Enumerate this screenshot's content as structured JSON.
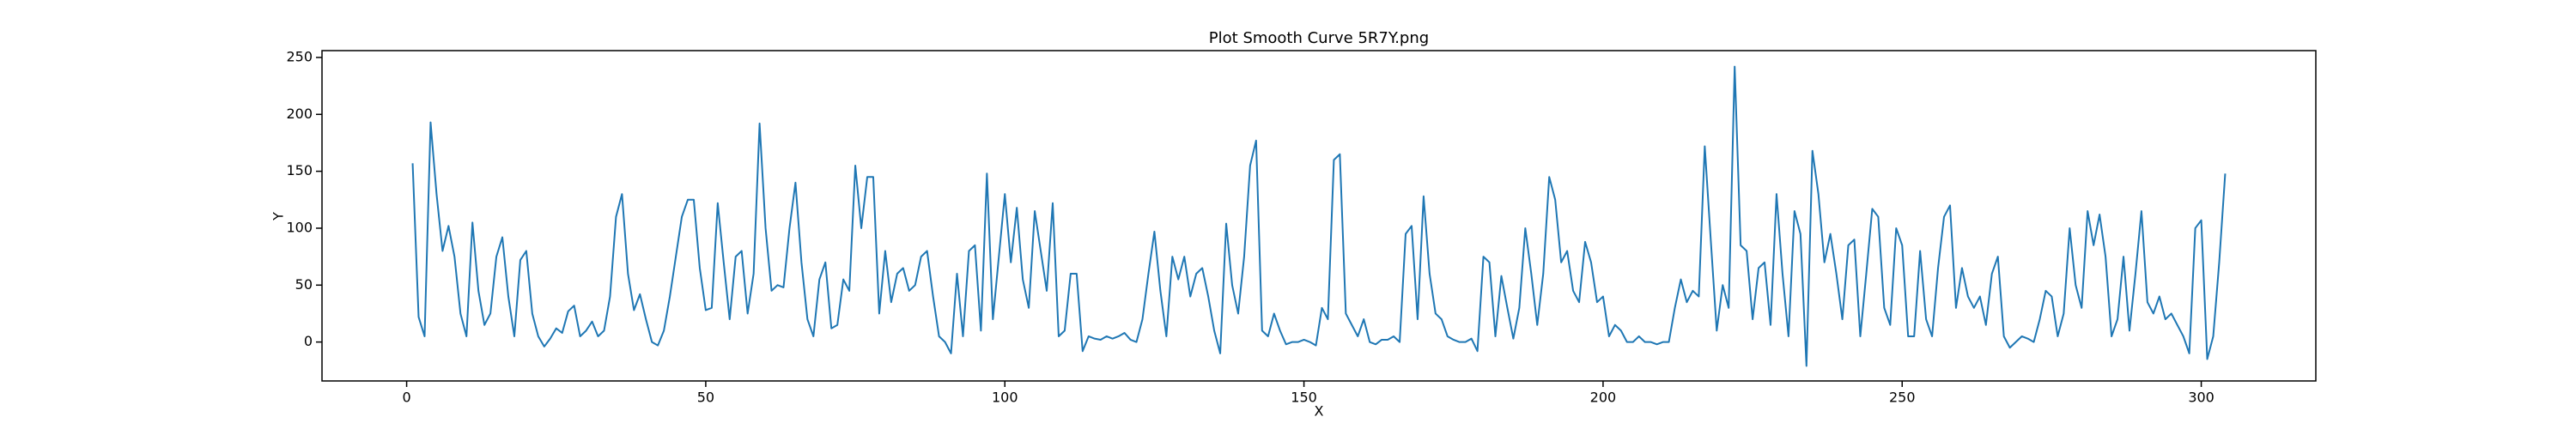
{
  "chart_data": {
    "type": "line",
    "title": "Plot Smooth Curve 5R7Y.png",
    "xlabel": "X",
    "ylabel": "Y",
    "color": "#1f77b4",
    "x": [
      1,
      2,
      3,
      4,
      5,
      6,
      7,
      8,
      9,
      10,
      11,
      12,
      13,
      14,
      15,
      16,
      17,
      18,
      19,
      20,
      21,
      22,
      23,
      24,
      25,
      26,
      27,
      28,
      29,
      30,
      31,
      32,
      33,
      34,
      35,
      36,
      37,
      38,
      39,
      40,
      41,
      42,
      43,
      44,
      45,
      46,
      47,
      48,
      49,
      50,
      51,
      52,
      53,
      54,
      55,
      56,
      57,
      58,
      59,
      60,
      61,
      62,
      63,
      64,
      65,
      66,
      67,
      68,
      69,
      70,
      71,
      72,
      73,
      74,
      75,
      76,
      77,
      78,
      79,
      80,
      81,
      82,
      83,
      84,
      85,
      86,
      87,
      88,
      89,
      90,
      91,
      92,
      93,
      94,
      95,
      96,
      97,
      98,
      99,
      100,
      101,
      102,
      103,
      104,
      105,
      106,
      107,
      108,
      109,
      110,
      111,
      112,
      113,
      114,
      115,
      116,
      117,
      118,
      119,
      120,
      121,
      122,
      123,
      124,
      125,
      126,
      127,
      128,
      129,
      130,
      131,
      132,
      133,
      134,
      135,
      136,
      137,
      138,
      139,
      140,
      141,
      142,
      143,
      144,
      145,
      146,
      147,
      148,
      149,
      150,
      151,
      152,
      153,
      154,
      155,
      156,
      157,
      158,
      159,
      160,
      161,
      162,
      163,
      164,
      165,
      166,
      167,
      168,
      169,
      170,
      171,
      172,
      173,
      174,
      175,
      176,
      177,
      178,
      179,
      180,
      181,
      182,
      183,
      184,
      185,
      186,
      187,
      188,
      189,
      190,
      191,
      192,
      193,
      194,
      195,
      196,
      197,
      198,
      199,
      200,
      201,
      202,
      203,
      204,
      205,
      206,
      207,
      208,
      209,
      210,
      211,
      212,
      213,
      214,
      215,
      216,
      217,
      218,
      219,
      220,
      221,
      222,
      223,
      224,
      225,
      226,
      227,
      228,
      229,
      230,
      231,
      232,
      233,
      234,
      235,
      236,
      237,
      238,
      239,
      240,
      241,
      242,
      243,
      244,
      245,
      246,
      247,
      248,
      249,
      250,
      251,
      252,
      253,
      254,
      255,
      256,
      257,
      258,
      259,
      260,
      261,
      262,
      263,
      264,
      265,
      266,
      267,
      268,
      269,
      270,
      271,
      272,
      273,
      274,
      275,
      276,
      277,
      278,
      279,
      280,
      281,
      282,
      283,
      284,
      285,
      286,
      287,
      288,
      289,
      290,
      291,
      292,
      293,
      294,
      295,
      296,
      297,
      298,
      299,
      300,
      301,
      302,
      303,
      304
    ],
    "values": [
      157,
      22,
      5,
      193,
      130,
      80,
      102,
      75,
      25,
      5,
      105,
      45,
      15,
      25,
      75,
      92,
      40,
      5,
      72,
      80,
      25,
      5,
      -4,
      3,
      12,
      8,
      27,
      32,
      5,
      10,
      18,
      5,
      10,
      40,
      110,
      130,
      60,
      28,
      42,
      20,
      0,
      -3,
      10,
      40,
      75,
      110,
      125,
      125,
      65,
      28,
      30,
      122,
      70,
      20,
      75,
      80,
      25,
      60,
      192,
      100,
      45,
      50,
      48,
      100,
      140,
      70,
      20,
      5,
      55,
      70,
      12,
      15,
      55,
      45,
      155,
      100,
      145,
      145,
      25,
      80,
      35,
      60,
      65,
      45,
      50,
      75,
      80,
      40,
      5,
      0,
      -10,
      60,
      5,
      80,
      85,
      10,
      148,
      20,
      75,
      130,
      70,
      118,
      55,
      30,
      115,
      80,
      45,
      122,
      5,
      10,
      60,
      60,
      -8,
      5,
      3,
      2,
      5,
      3,
      5,
      8,
      2,
      0,
      20,
      60,
      97,
      45,
      5,
      75,
      55,
      75,
      40,
      60,
      65,
      40,
      10,
      -10,
      104,
      50,
      25,
      75,
      155,
      177,
      10,
      5,
      25,
      10,
      -2,
      0,
      0,
      2,
      0,
      -3,
      30,
      20,
      160,
      165,
      25,
      15,
      5,
      20,
      0,
      -2,
      2,
      2,
      5,
      0,
      95,
      102,
      20,
      128,
      60,
      25,
      20,
      5,
      2,
      0,
      0,
      3,
      -8,
      75,
      70,
      5,
      58,
      30,
      3,
      30,
      100,
      60,
      15,
      60,
      145,
      125,
      70,
      80,
      45,
      35,
      88,
      70,
      35,
      40,
      5,
      15,
      10,
      0,
      0,
      5,
      0,
      0,
      -2,
      0,
      0,
      30,
      55,
      35,
      45,
      40,
      172,
      90,
      10,
      50,
      30,
      242,
      85,
      80,
      20,
      65,
      70,
      15,
      130,
      60,
      5,
      115,
      95,
      -21,
      168,
      130,
      70,
      95,
      60,
      20,
      85,
      90,
      5,
      60,
      117,
      110,
      30,
      15,
      100,
      85,
      5,
      5,
      80,
      20,
      5,
      65,
      110,
      120,
      30,
      65,
      40,
      30,
      40,
      15,
      60,
      75,
      5,
      -5,
      0,
      5,
      3,
      0,
      20,
      45,
      40,
      5,
      25,
      100,
      50,
      30,
      115,
      85,
      112,
      75,
      5,
      20,
      75,
      10,
      60,
      115,
      35,
      25,
      40,
      20,
      25,
      15,
      5,
      -10,
      100,
      107,
      -15,
      5,
      70,
      148
    ],
    "xlim": [
      -14.15,
      319.15
    ],
    "ylim": [
      -34.2,
      256
    ],
    "xticks": [
      0,
      50,
      100,
      150,
      200,
      250,
      300
    ],
    "yticks": [
      0,
      50,
      100,
      150,
      200,
      250
    ]
  }
}
